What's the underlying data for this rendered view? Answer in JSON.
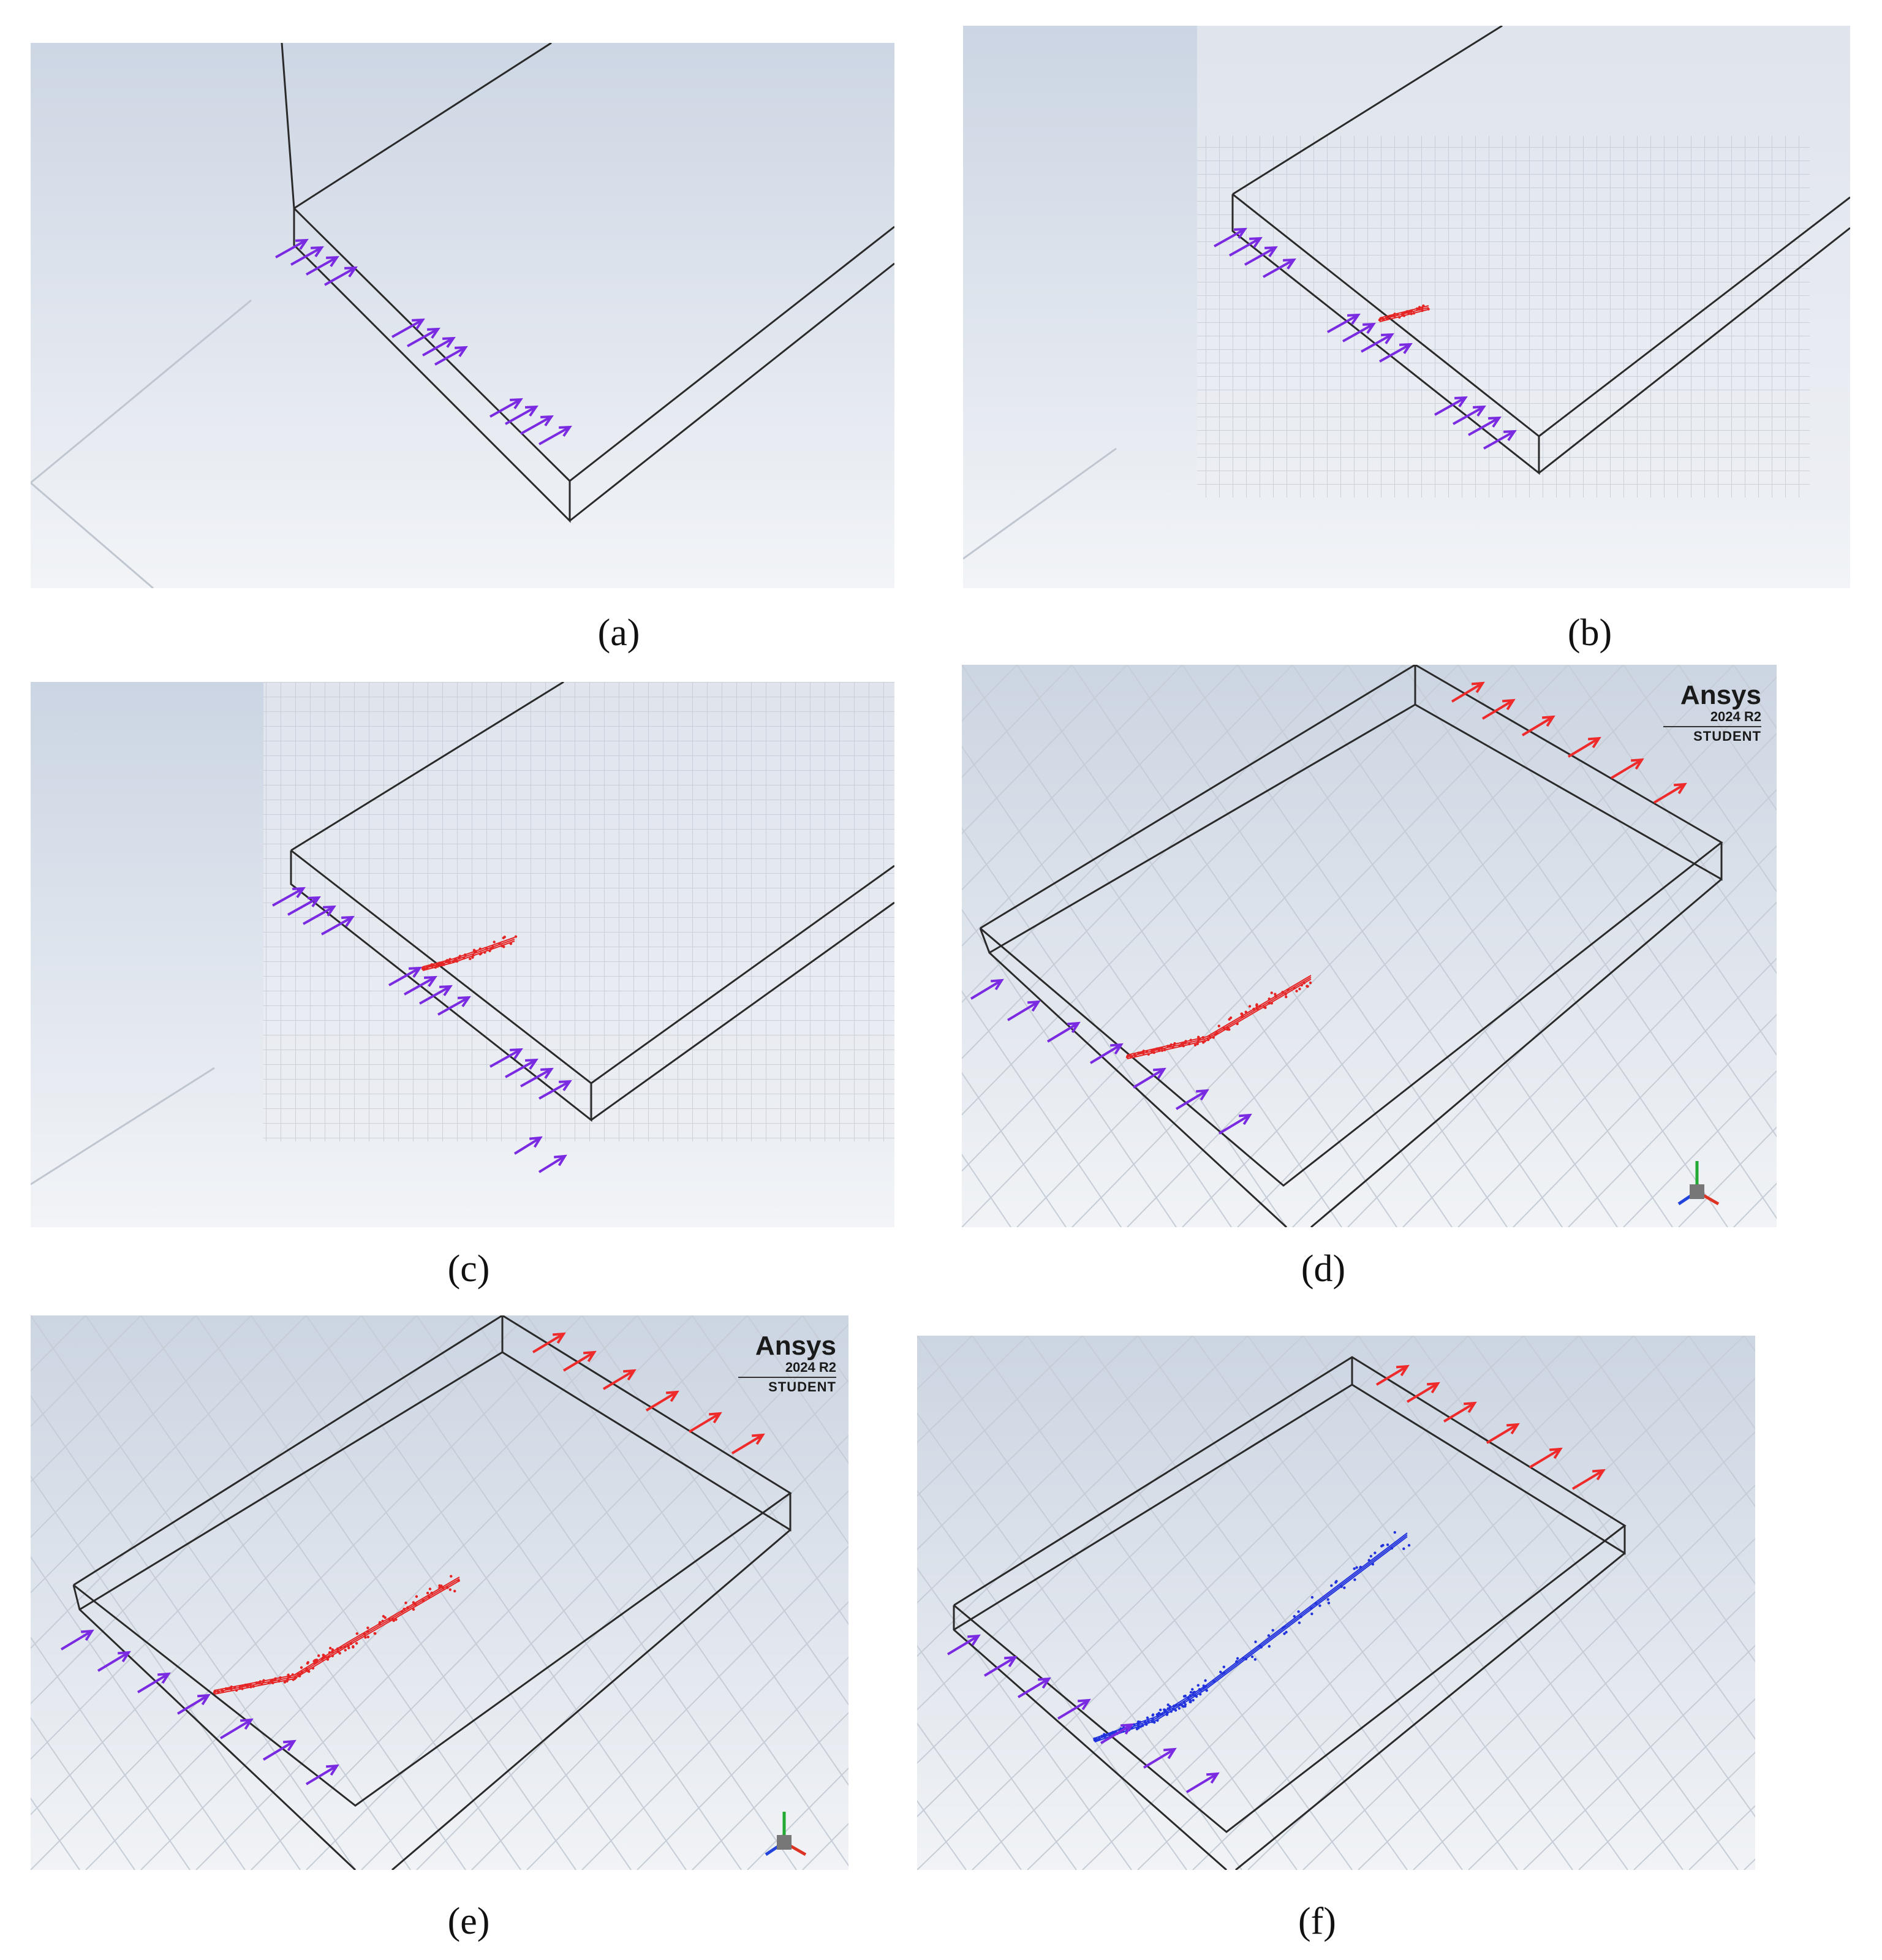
{
  "panels": [
    {
      "id": "a",
      "caption": "(a)",
      "grid": "none",
      "stream": "none",
      "outlet": false,
      "logo": false,
      "triad": false
    },
    {
      "id": "b",
      "caption": "(b)",
      "grid": "inset",
      "stream": "red-short",
      "outlet": false,
      "logo": false,
      "triad": false
    },
    {
      "id": "c",
      "caption": "(c)",
      "grid": "inset",
      "stream": "red-medium",
      "outlet": false,
      "logo": false,
      "triad": false
    },
    {
      "id": "d",
      "caption": "(d)",
      "grid": "full",
      "stream": "red-long",
      "outlet": true,
      "logo": true,
      "triad": true
    },
    {
      "id": "e",
      "caption": "(e)",
      "grid": "full",
      "stream": "red-longer",
      "outlet": true,
      "logo": true,
      "triad": true
    },
    {
      "id": "f",
      "caption": "(f)",
      "grid": "full",
      "stream": "blue-long",
      "outlet": true,
      "logo": false,
      "triad": false
    }
  ],
  "watermark": {
    "brand": "Ansys",
    "version": "2024 R2",
    "edition": "STUDENT"
  },
  "colors": {
    "inlet_arrow": "#7a2be2",
    "outlet_arrow": "#ee2a2a",
    "particles_red": "#e52525",
    "particles_blue": "#2233dd",
    "box_edge": "#2a2a2a"
  }
}
